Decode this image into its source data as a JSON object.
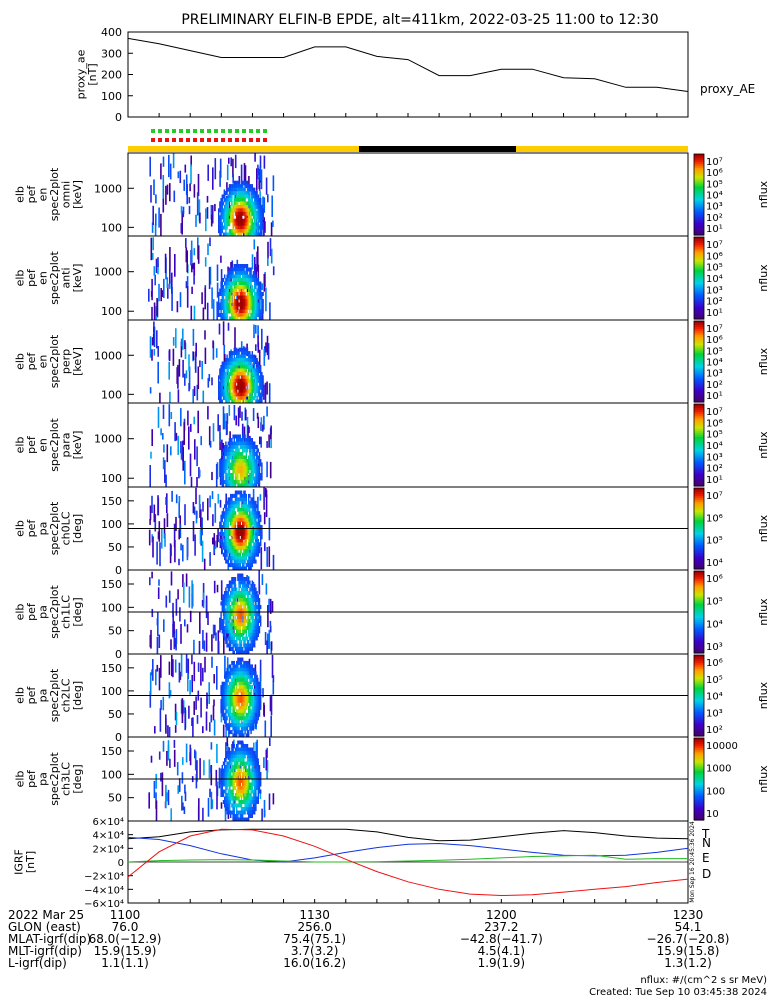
{
  "title": "PRELIMINARY ELFIN-B EPDE, alt=411km, 2022-03-25 11:00 to 12:30",
  "colors": {
    "spin_green": "#22cc22",
    "spin_red": "#ee1111",
    "sunlit": "#ffcc00",
    "eclipse": "#000000",
    "N": "#1133dd",
    "E": "#22bb22",
    "D": "#ee1111",
    "T": "#000000"
  },
  "chart_data": [
    {
      "type": "line",
      "panel": "proxy_ae",
      "ylabel_lines": [
        "proxy_ae",
        "[nT]"
      ],
      "series_label": "proxy_AE",
      "ylim": [
        0,
        400
      ],
      "yticks": [
        "400",
        "300",
        "200",
        "100",
        "0"
      ],
      "x_minutes": [
        0,
        5,
        15,
        25,
        30,
        35,
        40,
        45,
        50,
        55,
        60,
        65,
        70,
        75,
        80,
        85,
        90
      ],
      "values": [
        370,
        345,
        280,
        280,
        330,
        330,
        285,
        270,
        195,
        195,
        225,
        225,
        185,
        180,
        140,
        140,
        120
      ]
    },
    {
      "type": "heatmap",
      "panel": "omni",
      "ylabel_lines": [
        "elb",
        "pef",
        "en",
        "spec2plot",
        "omni",
        "[keV]"
      ],
      "yticks": [
        "1000",
        "100"
      ],
      "ylog": true,
      "ylim": [
        60,
        8000
      ],
      "colorbar_label": "nflux",
      "colorbar_ticks": [
        "10⁷",
        "10⁶",
        "10⁵",
        "10⁴",
        "10³",
        "10²",
        "10¹"
      ]
    },
    {
      "type": "heatmap",
      "panel": "anti",
      "ylabel_lines": [
        "elb",
        "pef",
        "en",
        "spec2plot",
        "anti",
        "[keV]"
      ],
      "yticks": [
        "1000",
        "100"
      ],
      "ylog": true,
      "ylim": [
        60,
        8000
      ],
      "colorbar_label": "nflux",
      "colorbar_ticks": [
        "10⁷",
        "10⁶",
        "10⁵",
        "10⁴",
        "10³",
        "10²",
        "10¹"
      ]
    },
    {
      "type": "heatmap",
      "panel": "perp",
      "ylabel_lines": [
        "elb",
        "pef",
        "en",
        "spec2plot",
        "perp",
        "[keV]"
      ],
      "yticks": [
        "1000",
        "100"
      ],
      "ylog": true,
      "ylim": [
        60,
        8000
      ],
      "colorbar_label": "nflux",
      "colorbar_ticks": [
        "10⁷",
        "10⁶",
        "10⁵",
        "10⁴",
        "10³",
        "10²",
        "10¹"
      ]
    },
    {
      "type": "heatmap",
      "panel": "para",
      "ylabel_lines": [
        "elb",
        "pef",
        "en",
        "spec2plot",
        "para",
        "[keV]"
      ],
      "yticks": [
        "1000",
        "100"
      ],
      "ylog": true,
      "ylim": [
        60,
        8000
      ],
      "colorbar_label": "nflux",
      "colorbar_ticks": [
        "10⁷",
        "10⁶",
        "10⁵",
        "10⁴",
        "10³",
        "10²",
        "10¹"
      ]
    },
    {
      "type": "heatmap",
      "panel": "ch0LC",
      "ylabel_lines": [
        "elb",
        "pef",
        "pa",
        "spec2plot",
        "ch0LC",
        "[deg]"
      ],
      "yticks": [
        "150",
        "100",
        "50",
        "0"
      ],
      "ylim": [
        0,
        180
      ],
      "lossconeline": 90,
      "colorbar_label": "nflux",
      "colorbar_ticks": [
        "10⁷",
        "10⁶",
        "10⁵",
        "10⁴"
      ]
    },
    {
      "type": "heatmap",
      "panel": "ch1LC",
      "ylabel_lines": [
        "elb",
        "pef",
        "pa",
        "spec2plot",
        "ch1LC",
        "[deg]"
      ],
      "yticks": [
        "150",
        "100",
        "50",
        "0"
      ],
      "ylim": [
        0,
        180
      ],
      "lossconeline": 90,
      "colorbar_label": "nflux",
      "colorbar_ticks": [
        "10⁶",
        "10⁵",
        "10⁴",
        "10³"
      ]
    },
    {
      "type": "heatmap",
      "panel": "ch2LC",
      "ylabel_lines": [
        "elb",
        "pef",
        "pa",
        "spec2plot",
        "ch2LC",
        "[deg]"
      ],
      "yticks": [
        "150",
        "100",
        "50",
        "0"
      ],
      "ylim": [
        0,
        180
      ],
      "lossconeline": 90,
      "colorbar_label": "nflux",
      "colorbar_ticks": [
        "10⁶",
        "10⁵",
        "10⁴",
        "10³",
        "10²"
      ]
    },
    {
      "type": "heatmap",
      "panel": "ch3LC",
      "ylabel_lines": [
        "elb",
        "pef",
        "pa",
        "spec2plot",
        "ch3LC",
        "[deg]"
      ],
      "yticks": [
        "150",
        "100",
        "50"
      ],
      "ylim": [
        0,
        180
      ],
      "lossconeline": 90,
      "colorbar_label": "nflux",
      "colorbar_ticks": [
        "10000",
        "1000",
        "100",
        "10"
      ]
    },
    {
      "type": "line",
      "panel": "IGRF",
      "ylabel_lines": [
        "IGRF",
        "[nT]"
      ],
      "yticks": [
        "6×10⁴",
        "4×10⁴",
        "2×10⁴",
        "0",
        "−2×10⁴",
        "−4×10⁴",
        "−6×10⁴"
      ],
      "ylim": [
        -60000,
        60000
      ],
      "side_text": "Mon Sep 16 20:45:36 2024",
      "x_minutes": [
        0,
        5,
        10,
        15,
        20,
        25,
        30,
        35,
        40,
        45,
        50,
        55,
        60,
        65,
        70,
        75,
        80,
        85,
        90
      ],
      "series": [
        {
          "name": "T",
          "values": [
            34000,
            37000,
            44000,
            47000,
            48000,
            48000,
            48000,
            48000,
            44000,
            36000,
            31000,
            32000,
            37000,
            42000,
            46000,
            43000,
            38000,
            35000,
            34000
          ]
        },
        {
          "name": "N",
          "values": [
            36000,
            33000,
            24000,
            12000,
            3000,
            0,
            6000,
            14000,
            21000,
            26000,
            27000,
            24000,
            19000,
            14000,
            10000,
            9000,
            10000,
            14000,
            20000
          ]
        },
        {
          "name": "E",
          "values": [
            0,
            2000,
            3000,
            3500,
            3000,
            1500,
            0,
            0,
            500,
            1500,
            2500,
            4000,
            6000,
            8000,
            9000,
            10000,
            4000,
            5000,
            5000
          ]
        },
        {
          "name": "D",
          "values": [
            -22000,
            15000,
            38000,
            48000,
            47000,
            38000,
            23000,
            4000,
            -14000,
            -29000,
            -40000,
            -47000,
            -49000,
            -48000,
            -44000,
            -40000,
            -36000,
            -30000,
            -25000
          ]
        }
      ]
    }
  ],
  "x_axis": {
    "tick_labels": [
      "1100",
      "1130",
      "1200",
      "1230"
    ],
    "rows": [
      {
        "label": "2022 Mar 25",
        "values": [
          "1100",
          "1130",
          "1200",
          "1230"
        ]
      },
      {
        "label": "GLON (east)",
        "values": [
          "76.0",
          "256.0",
          "237.2",
          "54.1"
        ]
      },
      {
        "label": "MLAT-igrf(dip)",
        "values": [
          "68.0(−12.9)",
          "75.4(75.1)",
          "−42.8(−41.7)",
          "−26.7(−20.8)"
        ]
      },
      {
        "label": "MLT-igrf(dip)",
        "values": [
          "15.9(15.9)",
          "3.7(3.2)",
          "4.5(4.1)",
          "15.9(15.8)"
        ]
      },
      {
        "label": "L-igrf(dip)",
        "values": [
          "1.1(1.1)",
          "16.0(16.2)",
          "1.9(1.9)",
          "1.3(1.2)"
        ]
      }
    ]
  },
  "footer": {
    "units": "nflux: #/(cm^2 s sr MeV)",
    "created": "Created: Tue Sep 10 03:45:38 2024"
  }
}
